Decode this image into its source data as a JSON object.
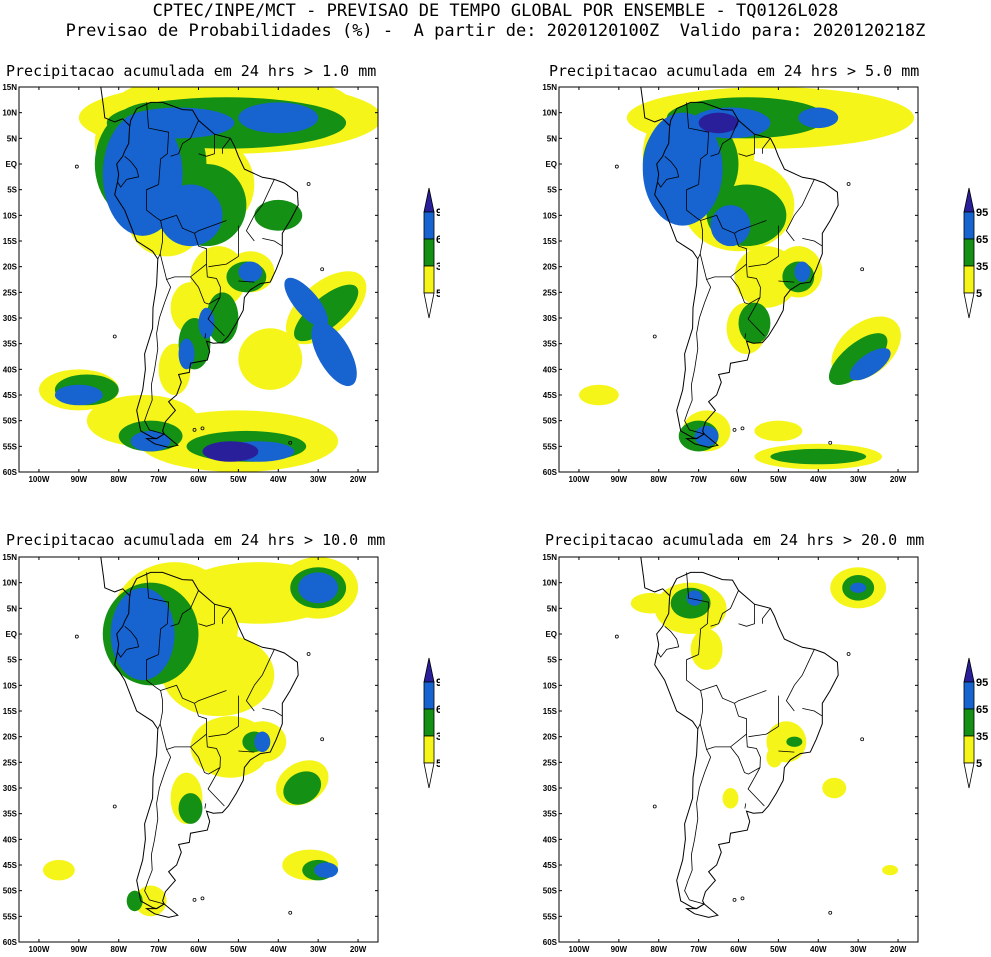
{
  "header": {
    "line1": "CPTEC/INPE/MCT - PREVISAO DE TEMPO GLOBAL POR ENSEMBLE - TQ0126L028",
    "line2": "Previsao de Probabilidades (%) -  A partir de: 2020120100Z  Valido para: 2020120218Z"
  },
  "panels": [
    {
      "title": "Precipitacao acumulada em 24 hrs > 1.0 mm"
    },
    {
      "title": "Precipitacao acumulada em 24 hrs > 5.0 mm"
    },
    {
      "title": "Precipitacao acumulada em 24 hrs > 10.0 mm"
    },
    {
      "title": "Precipitacao acumulada em 24 hrs > 20.0 mm"
    }
  ],
  "axis": {
    "lat_labels": [
      "15N",
      "10N",
      "5N",
      "EQ",
      "5S",
      "10S",
      "15S",
      "20S",
      "25S",
      "30S",
      "35S",
      "40S",
      "45S",
      "50S",
      "55S",
      "60S"
    ],
    "lon_labels": [
      "100W",
      "90W",
      "80W",
      "70W",
      "60W",
      "50W",
      "40W",
      "30W",
      "20W"
    ]
  },
  "colorbar": {
    "levels": [
      "95",
      "65",
      "35",
      "5"
    ],
    "colors": {
      "top": "#2a1f9a",
      "95": "#1763d0",
      "65": "#149014",
      "35": "#f6f51a",
      "bottom": "#ffffff"
    }
  },
  "colors": {
    "land_line": "#000000",
    "background": "#ffffff"
  }
}
